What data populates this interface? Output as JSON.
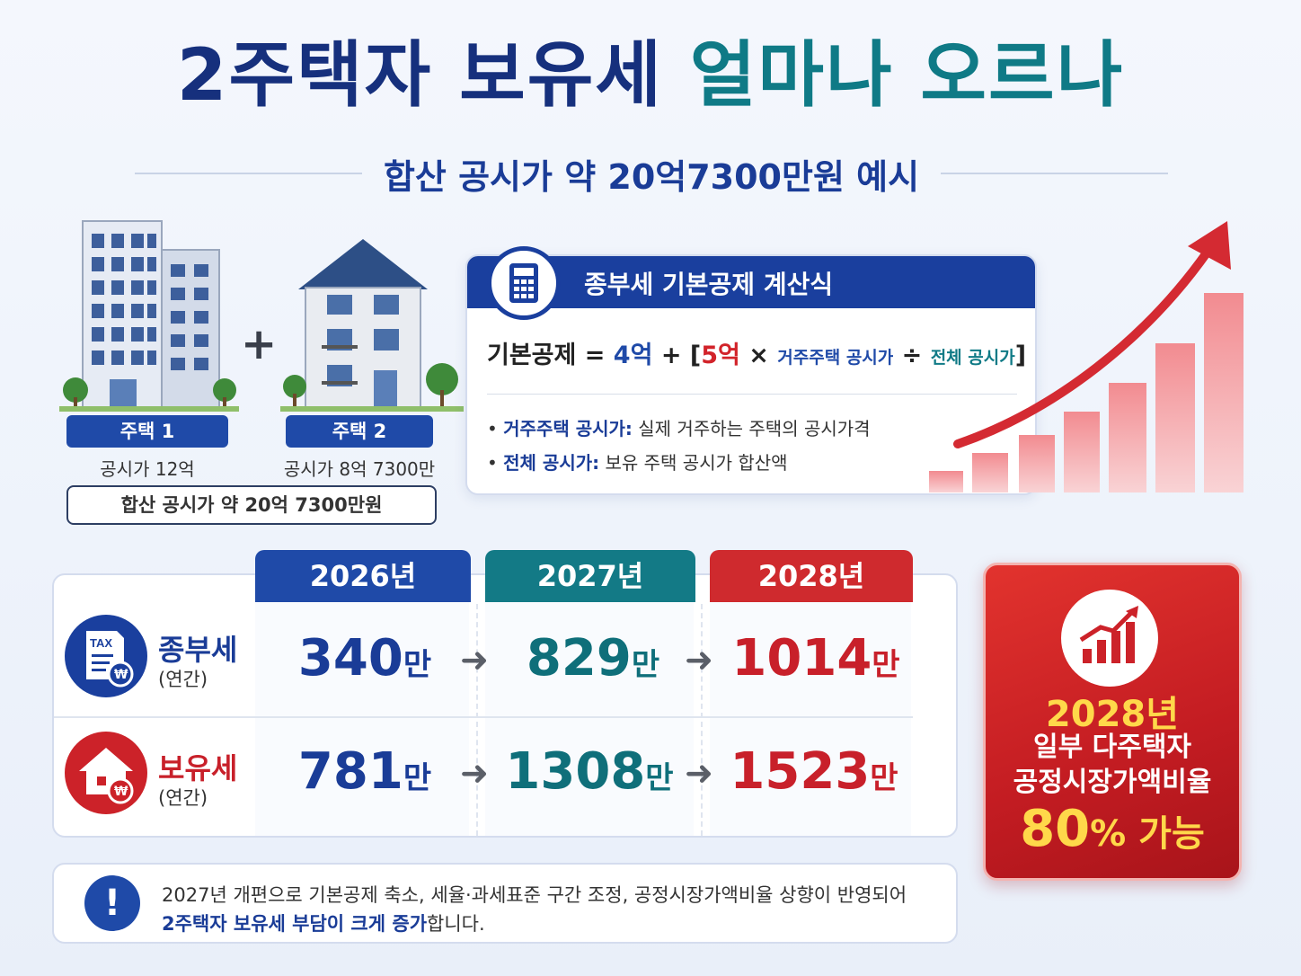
{
  "title": {
    "part1": "2주택자 보유세",
    "part2": "얼마나 오르나"
  },
  "subtitle": "합산 공시가 약 20억7300만원 예시",
  "houses": [
    {
      "label": "주택 1",
      "price": "공시가 12억"
    },
    {
      "label": "주택 2",
      "price": "공시가 8억 7300만"
    }
  ],
  "plus": "+",
  "sum": "합산 공시가 약 20억 7300만원",
  "formula": {
    "title": "종부세 기본공제 계산식",
    "lhs": "기본공제 = ",
    "base": "4억",
    "plus": " + [",
    "mult": "5억",
    "times": " × ",
    "num": "거주주택 공시가",
    "div": " ÷ ",
    "den": "전체 공시가",
    "close": "]",
    "bullets": [
      {
        "term": "거주주택 공시가:",
        "desc": " 실제 거주하는 주택의 공시가격"
      },
      {
        "term": "전체 공시가:",
        "desc": " 보유 주택 공시가 합산액"
      }
    ]
  },
  "years": [
    "2026년",
    "2027년",
    "2028년"
  ],
  "rows": [
    {
      "name": "종부세",
      "sub": "(연간)",
      "values": [
        "340",
        "829",
        "1014"
      ],
      "unit": "만",
      "icon": "tax-document-icon"
    },
    {
      "name": "보유세",
      "sub": "(연간)",
      "values": [
        "781",
        "1308",
        "1523"
      ],
      "unit": "만",
      "icon": "house-won-icon"
    }
  ],
  "arrow": "➜",
  "highlight": {
    "year": "2028년",
    "line1": "일부 다주택자",
    "line2": "공정시장가액비율",
    "big_num": "80",
    "big_pct": "%",
    "big_suffix": " 가능"
  },
  "notice": {
    "icon": "!",
    "line1": "2027년 개편으로 기본공제 축소, 세율·과세표준 구간 조정, 공정시장가액비율 상향이 반영되어",
    "line2_hl": "2주택자 보유세 부담이 크게 증가",
    "line2_rest": "합니다."
  },
  "colors": {
    "navy": "#1a3c97",
    "teal": "#0f7a86",
    "red": "#c8202a",
    "gold": "#ffd84a"
  }
}
